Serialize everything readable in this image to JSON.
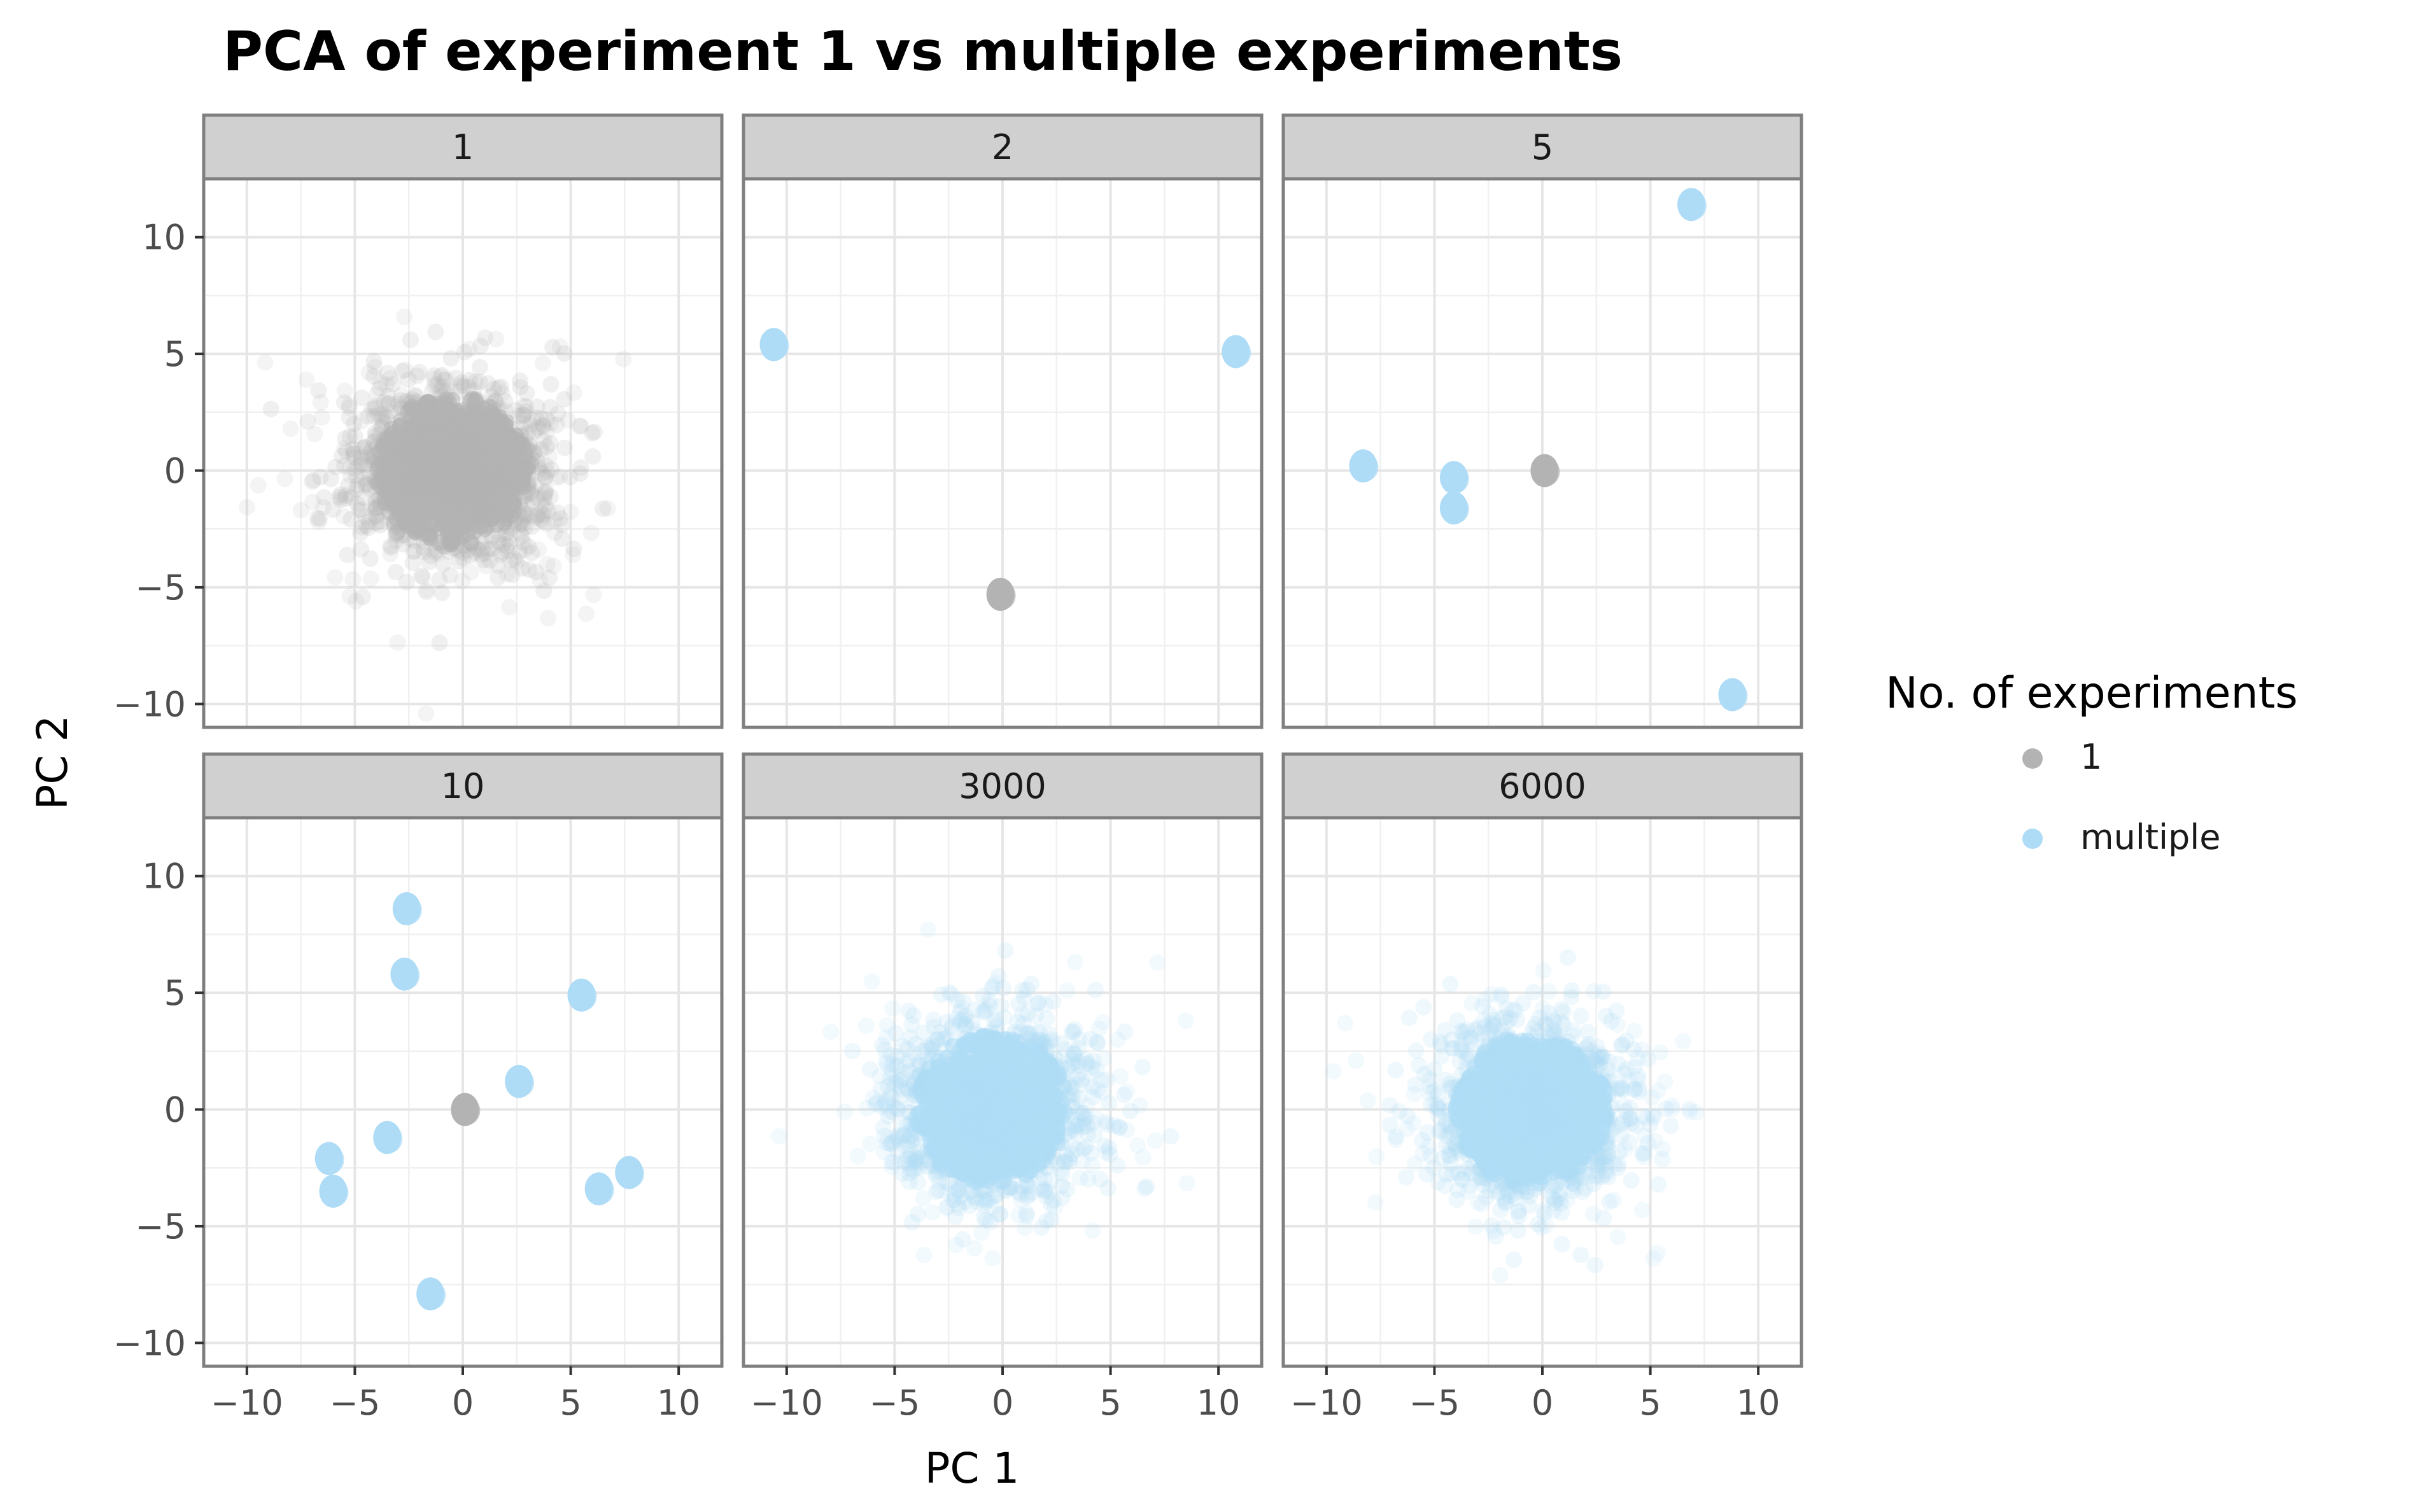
{
  "chart_data": {
    "type": "scatter",
    "title": "PCA of experiment 1 vs multiple experiments",
    "xlabel": "PC 1",
    "ylabel": "PC 2",
    "xlim": [
      -12,
      12
    ],
    "ylim": [
      -11,
      12.5
    ],
    "x_ticks": [
      -10,
      -5,
      0,
      5,
      10
    ],
    "y_ticks": [
      -10,
      -5,
      0,
      5,
      10
    ],
    "x_tick_labels": [
      "−10",
      "−5",
      "0",
      "5",
      "10"
    ],
    "y_tick_labels": [
      "−10",
      "−5",
      "0",
      "5",
      "10"
    ],
    "grid": true,
    "legend": {
      "title": "No. of experiments",
      "placement": "right",
      "entries": [
        {
          "label": "1",
          "color": "#b3b3b3"
        },
        {
          "label": "multiple",
          "color": "#aedcf6"
        }
      ]
    },
    "panels": [
      {
        "label": "1",
        "cloud": {
          "group": "1",
          "cx": -0.5,
          "cy": 0.0
        },
        "points": []
      },
      {
        "label": "2",
        "points": [
          {
            "group": "multiple",
            "x": -10.6,
            "y": 5.4
          },
          {
            "group": "multiple",
            "x": 10.8,
            "y": 5.1
          },
          {
            "group": "1",
            "x": -0.1,
            "y": -5.3
          }
        ]
      },
      {
        "label": "5",
        "points": [
          {
            "group": "multiple",
            "x": 6.9,
            "y": 11.4
          },
          {
            "group": "multiple",
            "x": -8.3,
            "y": 0.2
          },
          {
            "group": "multiple",
            "x": -4.1,
            "y": -0.3
          },
          {
            "group": "multiple",
            "x": -4.1,
            "y": -1.6
          },
          {
            "group": "multiple",
            "x": 8.8,
            "y": -9.6
          },
          {
            "group": "1",
            "x": 0.1,
            "y": 0.0
          }
        ]
      },
      {
        "label": "10",
        "points": [
          {
            "group": "multiple",
            "x": -2.6,
            "y": 8.6
          },
          {
            "group": "multiple",
            "x": -2.7,
            "y": 5.8
          },
          {
            "group": "multiple",
            "x": 5.5,
            "y": 4.9
          },
          {
            "group": "multiple",
            "x": 2.6,
            "y": 1.2
          },
          {
            "group": "multiple",
            "x": -3.5,
            "y": -1.2
          },
          {
            "group": "multiple",
            "x": -6.2,
            "y": -2.1
          },
          {
            "group": "multiple",
            "x": -6.0,
            "y": -3.5
          },
          {
            "group": "multiple",
            "x": 6.3,
            "y": -3.4
          },
          {
            "group": "multiple",
            "x": 7.7,
            "y": -2.7
          },
          {
            "group": "multiple",
            "x": -1.5,
            "y": -7.9
          },
          {
            "group": "1",
            "x": 0.1,
            "y": 0.0
          }
        ]
      },
      {
        "label": "3000",
        "cloud": {
          "group": "multiple",
          "cx": -0.5,
          "cy": 0.0
        },
        "points": []
      },
      {
        "label": "6000",
        "cloud": {
          "group": "multiple",
          "cx": -0.5,
          "cy": 0.0
        },
        "points": []
      }
    ]
  }
}
